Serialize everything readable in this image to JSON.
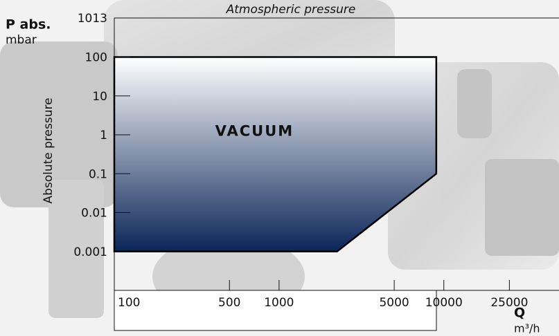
{
  "chart_data": {
    "type": "area",
    "title": "Atmospheric pressure",
    "y_label_main": "P abs.",
    "y_unit": "mbar",
    "y_label": "Absolute pressure",
    "x_label_main": "Q",
    "x_unit": "m³/h",
    "x": [
      100,
      9000,
      9000,
      2250,
      100
    ],
    "series": [
      {
        "name": "VACUUM",
        "color": "#0a2558",
        "values": [
          100,
          100,
          0.1,
          0.001,
          0.001
        ]
      }
    ],
    "xscale": "log",
    "yscale": "log",
    "xlim": [
      100,
      50000
    ],
    "ylim": [
      0.0001,
      1013
    ],
    "xticks": [
      100,
      500,
      1000,
      5000,
      10000,
      25000
    ],
    "yticks": [
      1013,
      100,
      10,
      1,
      0.1,
      0.01,
      0.001
    ]
  }
}
